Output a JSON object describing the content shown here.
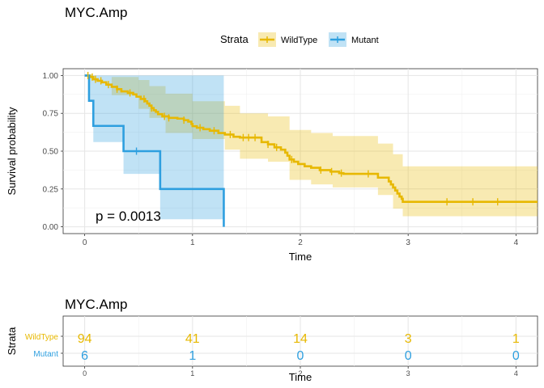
{
  "chart_data": [
    {
      "type": "line",
      "subtype": "kaplan-meier",
      "title": "MYC.Amp",
      "xlabel": "Time",
      "ylabel": "Survival probability",
      "xlim": [
        -0.2,
        4.2
      ],
      "ylim": [
        -0.045,
        1.045
      ],
      "x_ticks": [
        0,
        1,
        2,
        3,
        4
      ],
      "y_ticks": [
        0.0,
        0.25,
        0.5,
        0.75,
        1.0
      ],
      "x_tick_labels": [
        "0",
        "1",
        "2",
        "3",
        "4"
      ],
      "y_tick_labels": [
        "0.00",
        "0.25",
        "0.50",
        "0.75",
        "1.00"
      ],
      "grid": true,
      "legend": {
        "title": "Strata",
        "placement": "top",
        "entries": [
          "WildType",
          "Mutant"
        ]
      },
      "annotation": "p = 0.0013",
      "series": [
        {
          "name": "WildType",
          "color": "#E7B800",
          "steps": [
            [
              0,
              1.0
            ],
            [
              0.05,
              0.99
            ],
            [
              0.08,
              0.98
            ],
            [
              0.11,
              0.97
            ],
            [
              0.14,
              0.96
            ],
            [
              0.18,
              0.95
            ],
            [
              0.21,
              0.94
            ],
            [
              0.25,
              0.93
            ],
            [
              0.28,
              0.92
            ],
            [
              0.32,
              0.91
            ],
            [
              0.36,
              0.9
            ],
            [
              0.4,
              0.89
            ],
            [
              0.45,
              0.88
            ],
            [
              0.5,
              0.87
            ],
            [
              0.53,
              0.86
            ],
            [
              0.56,
              0.85
            ],
            [
              0.58,
              0.84
            ],
            [
              0.6,
              0.83
            ],
            [
              0.62,
              0.82
            ],
            [
              0.64,
              0.81
            ],
            [
              0.66,
              0.8
            ],
            [
              0.68,
              0.79
            ],
            [
              0.7,
              0.78
            ],
            [
              0.73,
              0.77
            ],
            [
              0.76,
              0.76
            ],
            [
              0.8,
              0.75
            ],
            [
              0.83,
              0.74
            ],
            [
              0.88,
              0.73
            ],
            [
              0.93,
              0.72
            ],
            [
              0.96,
              0.71
            ],
            [
              0.98,
              0.7
            ],
            [
              1.0,
              0.69
            ],
            [
              1.05,
              0.68
            ],
            [
              1.1,
              0.67
            ],
            [
              1.15,
              0.66
            ],
            [
              1.22,
              0.65
            ],
            [
              1.3,
              0.63
            ],
            [
              1.38,
              0.61
            ],
            [
              1.44,
              0.6
            ],
            [
              1.5,
              0.59
            ],
            [
              1.6,
              0.59
            ],
            [
              1.4,
              0.59
            ],
            [
              1.4,
              0.59
            ],
            [
              1.44,
              0.59
            ],
            [
              1.5,
              0.58
            ],
            [
              1.6,
              0.58
            ],
            [
              1.44,
              0.58
            ]
          ],
          "curve": [
            [
              0,
              1.0
            ],
            [
              0.05,
              0.99
            ],
            [
              0.08,
              0.975
            ],
            [
              0.12,
              0.965
            ],
            [
              0.16,
              0.955
            ],
            [
              0.2,
              0.94
            ],
            [
              0.25,
              0.925
            ],
            [
              0.3,
              0.91
            ],
            [
              0.34,
              0.895
            ],
            [
              0.4,
              0.885
            ],
            [
              0.45,
              0.875
            ],
            [
              0.48,
              0.86
            ],
            [
              0.52,
              0.845
            ],
            [
              0.56,
              0.83
            ],
            [
              0.58,
              0.815
            ],
            [
              0.6,
              0.8
            ],
            [
              0.62,
              0.785
            ],
            [
              0.64,
              0.77
            ],
            [
              0.66,
              0.76
            ],
            [
              0.68,
              0.745
            ],
            [
              0.72,
              0.73
            ],
            [
              0.78,
              0.72
            ],
            [
              0.86,
              0.715
            ],
            [
              0.92,
              0.705
            ],
            [
              0.96,
              0.695
            ],
            [
              0.99,
              0.68
            ],
            [
              1.0,
              0.665
            ],
            [
              1.04,
              0.655
            ],
            [
              1.1,
              0.645
            ],
            [
              1.16,
              0.635
            ],
            [
              1.24,
              0.62
            ],
            [
              1.3,
              0.61
            ],
            [
              1.38,
              0.595
            ],
            [
              1.44,
              0.59
            ],
            [
              1.64,
              0.59
            ],
            [
              1.64,
              0.56
            ],
            [
              1.7,
              0.545
            ],
            [
              1.76,
              0.525
            ],
            [
              1.82,
              0.51
            ],
            [
              1.86,
              0.49
            ],
            [
              1.88,
              0.47
            ],
            [
              1.9,
              0.445
            ],
            [
              1.94,
              0.43
            ],
            [
              1.98,
              0.415
            ],
            [
              2.04,
              0.4
            ],
            [
              2.1,
              0.39
            ],
            [
              2.18,
              0.375
            ],
            [
              2.28,
              0.365
            ],
            [
              2.36,
              0.355
            ],
            [
              2.4,
              0.35
            ],
            [
              2.7,
              0.35
            ],
            [
              2.72,
              0.325
            ],
            [
              2.8,
              0.325
            ],
            [
              2.82,
              0.3
            ],
            [
              2.84,
              0.28
            ],
            [
              2.86,
              0.26
            ],
            [
              2.88,
              0.24
            ],
            [
              2.9,
              0.22
            ],
            [
              2.92,
              0.2
            ],
            [
              2.94,
              0.185
            ],
            [
              2.95,
              0.165
            ],
            [
              4.2,
              0.165
            ]
          ],
          "censor_x": [
            0.03,
            0.07,
            0.1,
            0.15,
            0.22,
            0.3,
            0.42,
            0.55,
            0.62,
            0.74,
            0.78,
            0.92,
            1.07,
            1.2,
            1.35,
            1.47,
            1.52,
            1.58,
            1.7,
            1.78,
            1.92,
            2.19,
            2.29,
            2.38,
            2.63,
            3.36,
            3.6,
            3.83
          ],
          "ci_upper": [
            [
              0,
              1.0
            ],
            [
              0.25,
              0.99
            ],
            [
              0.5,
              0.97
            ],
            [
              0.6,
              0.93
            ],
            [
              0.75,
              0.88
            ],
            [
              1.0,
              0.83
            ],
            [
              1.3,
              0.8
            ],
            [
              1.44,
              0.75
            ],
            [
              1.7,
              0.73
            ],
            [
              1.9,
              0.64
            ],
            [
              2.1,
              0.62
            ],
            [
              2.3,
              0.6
            ],
            [
              2.72,
              0.55
            ],
            [
              2.86,
              0.48
            ],
            [
              2.95,
              0.4
            ],
            [
              4.2,
              0.4
            ]
          ],
          "ci_lower": [
            [
              0,
              1.0
            ],
            [
              0.25,
              0.87
            ],
            [
              0.5,
              0.78
            ],
            [
              0.6,
              0.72
            ],
            [
              0.75,
              0.62
            ],
            [
              1.0,
              0.58
            ],
            [
              1.3,
              0.51
            ],
            [
              1.44,
              0.45
            ],
            [
              1.7,
              0.43
            ],
            [
              1.9,
              0.31
            ],
            [
              2.1,
              0.28
            ],
            [
              2.3,
              0.26
            ],
            [
              2.72,
              0.21
            ],
            [
              2.86,
              0.12
            ],
            [
              2.95,
              0.07
            ],
            [
              4.2,
              0.07
            ]
          ]
        },
        {
          "name": "Mutant",
          "color": "#2E9FDF",
          "curve": [
            [
              0,
              1.0
            ],
            [
              0.04,
              1.0
            ],
            [
              0.04,
              0.833
            ],
            [
              0.08,
              0.833
            ],
            [
              0.08,
              0.667
            ],
            [
              0.36,
              0.667
            ],
            [
              0.36,
              0.5
            ],
            [
              0.7,
              0.5
            ],
            [
              0.7,
              0.25
            ],
            [
              1.29,
              0.25
            ],
            [
              1.29,
              0.0
            ]
          ],
          "censor_x": [
            0.48
          ],
          "ci_upper": [
            [
              0,
              1.0
            ],
            [
              1.29,
              1.0
            ]
          ],
          "ci_lower": [
            [
              0,
              1.0
            ],
            [
              0.04,
              0.83
            ],
            [
              0.08,
              0.56
            ],
            [
              0.36,
              0.35
            ],
            [
              0.7,
              0.05
            ],
            [
              1.29,
              0.05
            ]
          ]
        }
      ]
    },
    {
      "type": "table",
      "title": "MYC.Amp",
      "xlabel": "Time",
      "ylabel": "Strata",
      "x_ticks": [
        0,
        1,
        2,
        3,
        4
      ],
      "x_tick_labels": [
        "0",
        "1",
        "2",
        "3",
        "4"
      ],
      "row_labels": [
        "WildType",
        "Mutant"
      ],
      "row_colors": [
        "#E7B800",
        "#2E9FDF"
      ],
      "rows": [
        {
          "name": "WildType",
          "values": [
            "94",
            "41",
            "14",
            "3",
            "1"
          ]
        },
        {
          "name": "Mutant",
          "values": [
            "6",
            "1",
            "0",
            "0",
            "0"
          ]
        }
      ]
    }
  ]
}
